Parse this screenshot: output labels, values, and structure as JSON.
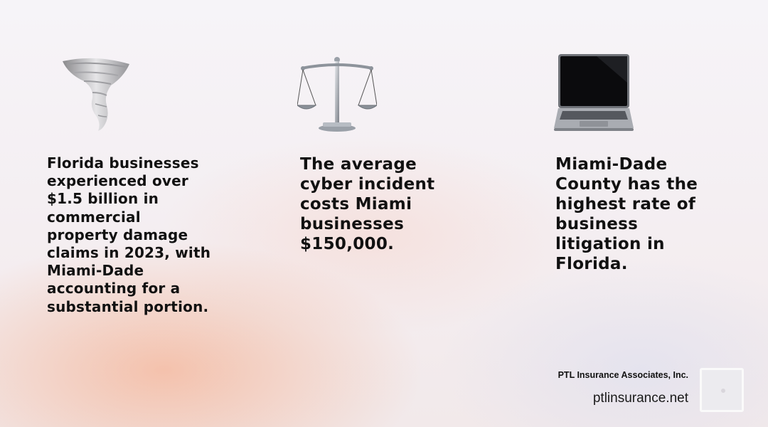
{
  "stats": [
    {
      "icon": "tornado-icon",
      "text": "Florida businesses experienced over $1.5 billion in commercial property damage claims in 2023, with Miami-Dade accounting for a substantial portion."
    },
    {
      "icon": "balance-scale-icon",
      "text": "The average cyber incident costs Miami businesses $150,000."
    },
    {
      "icon": "laptop-icon",
      "text": "Miami-Dade County has the highest rate of business litigation in Florida."
    }
  ],
  "footer": {
    "company": "PTL Insurance Associates, Inc.",
    "website": "ptlinsurance.net",
    "logo_icon": "company-logo-icon"
  }
}
